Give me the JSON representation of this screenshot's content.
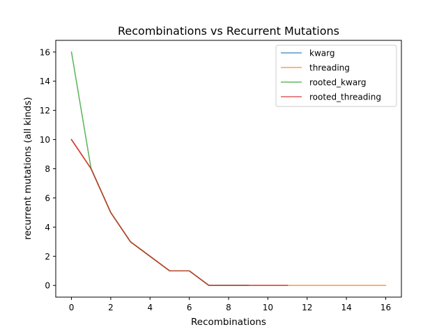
{
  "chart_data": {
    "type": "line",
    "title": "Recombinations vs Recurrent Mutations",
    "xlabel": "Recombinations",
    "ylabel": "recurrent mutations (all kinds)",
    "xlim": [
      -0.8,
      16.8
    ],
    "ylim": [
      -0.8,
      16.8
    ],
    "xticks": [
      0,
      2,
      4,
      6,
      8,
      10,
      12,
      14,
      16
    ],
    "yticks": [
      0,
      2,
      4,
      6,
      8,
      10,
      12,
      14,
      16
    ],
    "grid": false,
    "legend_position": "top-right",
    "series": [
      {
        "name": "kwarg",
        "color": "#1f77b4",
        "x": [
          0,
          1,
          2,
          3,
          4,
          5,
          6,
          7,
          8,
          9
        ],
        "y": [
          10,
          8,
          5,
          3,
          2,
          1,
          1,
          0,
          0,
          0
        ]
      },
      {
        "name": "threading",
        "color": "#ff7f0e",
        "x": [
          0,
          1,
          2,
          3,
          4,
          5,
          6,
          7,
          8,
          9,
          10,
          11,
          12,
          13,
          14,
          15,
          16
        ],
        "y": [
          10,
          8,
          5,
          3,
          2,
          1,
          1,
          0,
          0,
          0,
          0,
          0,
          0,
          0,
          0,
          0,
          0
        ]
      },
      {
        "name": "rooted_kwarg",
        "color": "#2ca02c",
        "x": [
          0,
          1,
          2,
          3,
          4,
          5,
          6,
          7,
          8,
          9
        ],
        "y": [
          16,
          8,
          5,
          3,
          2,
          1,
          1,
          0,
          0,
          0
        ]
      },
      {
        "name": "rooted_threading",
        "color": "#d62728",
        "x": [
          0,
          1,
          2,
          3,
          4,
          5,
          6,
          7,
          8,
          9,
          10,
          11
        ],
        "y": [
          10,
          8,
          5,
          3,
          2,
          1,
          1,
          0,
          0,
          0,
          0,
          0
        ]
      }
    ]
  }
}
